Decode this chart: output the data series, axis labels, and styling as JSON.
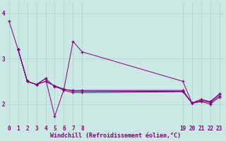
{
  "background_color": "#cce8e4",
  "line_color": "#800080",
  "grid_color": "#b0d8d4",
  "xlabel": "Windchill (Refroidissement éolien,°C)",
  "xticks": [
    0,
    1,
    2,
    3,
    4,
    5,
    6,
    7,
    8,
    19,
    20,
    21,
    22,
    23
  ],
  "yticks": [
    2,
    3,
    4
  ],
  "xlim": [
    -0.3,
    23.5
  ],
  "ylim": [
    1.55,
    4.25
  ],
  "figsize": [
    3.2,
    2.0
  ],
  "dpi": 100,
  "series1_x": [
    0,
    1,
    2,
    3,
    4,
    5,
    6,
    7,
    8,
    19,
    20,
    21,
    22,
    23
  ],
  "series1_y": [
    3.83,
    3.2,
    2.5,
    2.43,
    2.56,
    1.73,
    2.32,
    3.38,
    3.15,
    2.5,
    2.02,
    2.1,
    2.05,
    2.22
  ],
  "series2_x": [
    1,
    2,
    3,
    4,
    5,
    6,
    7,
    8,
    19,
    20,
    21,
    22,
    23
  ],
  "series2_y": [
    3.2,
    2.5,
    2.43,
    2.56,
    2.38,
    2.32,
    2.3,
    2.3,
    2.3,
    2.02,
    2.1,
    2.05,
    2.22
  ],
  "series3_x": [
    1,
    2,
    3,
    4,
    5,
    6,
    7,
    8,
    19,
    20,
    21,
    22,
    23
  ],
  "series3_y": [
    3.2,
    2.5,
    2.43,
    2.5,
    2.4,
    2.33,
    2.28,
    2.28,
    2.28,
    2.02,
    2.07,
    2.03,
    2.18
  ],
  "series4_x": [
    1,
    2,
    3,
    4,
    5,
    6,
    7,
    8,
    19,
    20,
    21,
    22,
    23
  ],
  "series4_y": [
    3.2,
    2.5,
    2.43,
    2.5,
    2.4,
    2.3,
    2.25,
    2.25,
    2.27,
    2.02,
    2.05,
    2.0,
    2.15
  ]
}
